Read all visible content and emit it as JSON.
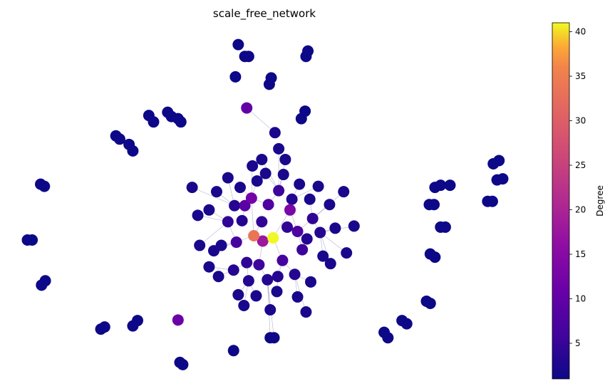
{
  "chart_data": {
    "type": "scatter",
    "title": "scale_free_network",
    "xlabel": "",
    "ylabel": "",
    "colorbar": {
      "label": "Degree",
      "colormap": "plasma",
      "range": [
        1,
        41
      ],
      "ticks": [
        5,
        10,
        15,
        20,
        25,
        30,
        35,
        40
      ],
      "tick_labels": [
        "5",
        "10",
        "15",
        "20",
        "25",
        "30",
        "35",
        "40"
      ]
    },
    "series": [
      {
        "values": [
          {
            "x": 0.0,
            "y": 0.0,
            "degree": 41
          },
          {
            "x": -0.41,
            "y": 0.04,
            "degree": 30
          },
          {
            "x": -0.22,
            "y": -0.06,
            "degree": 16
          },
          {
            "x": 0.36,
            "y": 0.52,
            "degree": 12
          },
          {
            "x": -0.46,
            "y": 0.74,
            "degree": 11
          },
          {
            "x": -2.02,
            "y": -1.53,
            "degree": 10
          },
          {
            "x": -0.56,
            "y": 2.42,
            "degree": 9
          },
          {
            "x": -0.6,
            "y": 0.6,
            "degree": 8
          },
          {
            "x": 0.52,
            "y": 0.12,
            "degree": 7
          },
          {
            "x": -0.1,
            "y": 0.62,
            "degree": 7
          },
          {
            "x": 0.2,
            "y": -0.42,
            "degree": 6
          },
          {
            "x": -0.78,
            "y": -0.08,
            "degree": 6
          },
          {
            "x": 0.62,
            "y": -0.22,
            "degree": 5
          },
          {
            "x": -0.3,
            "y": -0.5,
            "degree": 5
          },
          {
            "x": 0.12,
            "y": 0.88,
            "degree": 5
          },
          {
            "x": -0.96,
            "y": 0.3,
            "degree": 4
          },
          {
            "x": 0.84,
            "y": 0.36,
            "degree": 4
          },
          {
            "x": -0.56,
            "y": -0.46,
            "degree": 4
          },
          {
            "x": -0.24,
            "y": 0.3,
            "degree": 4
          },
          {
            "x": 0.3,
            "y": 0.2,
            "degree": 4
          },
          {
            "x": -0.66,
            "y": 0.32,
            "degree": 3
          },
          {
            "x": 0.4,
            "y": 0.72,
            "degree": 3
          },
          {
            "x": -0.82,
            "y": 0.6,
            "degree": 3
          },
          {
            "x": 0.72,
            "y": -0.02,
            "degree": 3
          },
          {
            "x": 1.0,
            "y": 0.1,
            "degree": 3
          },
          {
            "x": 0.1,
            "y": -0.72,
            "degree": 3
          },
          {
            "x": -0.12,
            "y": -0.78,
            "degree": 3
          },
          {
            "x": -0.52,
            "y": -0.8,
            "degree": 3
          },
          {
            "x": 0.46,
            "y": -0.68,
            "degree": 3
          },
          {
            "x": -0.84,
            "y": -0.6,
            "degree": 3
          },
          {
            "x": 1.06,
            "y": -0.34,
            "degree": 2
          },
          {
            "x": -1.1,
            "y": -0.14,
            "degree": 2
          },
          {
            "x": 0.78,
            "y": 0.72,
            "degree": 2
          },
          {
            "x": -0.7,
            "y": 0.94,
            "degree": 2
          },
          {
            "x": 0.22,
            "y": 1.18,
            "degree": 2
          },
          {
            "x": -0.16,
            "y": 1.2,
            "degree": 2
          },
          {
            "x": -0.34,
            "y": 1.06,
            "degree": 2
          },
          {
            "x": 0.56,
            "y": 1.0,
            "degree": 2
          },
          {
            "x": 1.2,
            "y": 0.62,
            "degree": 2
          },
          {
            "x": -1.2,
            "y": 0.86,
            "degree": 2
          },
          {
            "x": 1.32,
            "y": 0.18,
            "degree": 2
          },
          {
            "x": -1.36,
            "y": 0.52,
            "degree": 2
          },
          {
            "x": 1.22,
            "y": -0.48,
            "degree": 2
          },
          {
            "x": -1.16,
            "y": -0.72,
            "degree": 2
          },
          {
            "x": 0.52,
            "y": -1.1,
            "degree": 2
          },
          {
            "x": -0.36,
            "y": -1.08,
            "degree": 2
          },
          {
            "x": 0.08,
            "y": -1.0,
            "degree": 2
          },
          {
            "x": -0.74,
            "y": -1.06,
            "degree": 2
          },
          {
            "x": 0.8,
            "y": -0.82,
            "degree": 2
          },
          {
            "x": -1.26,
            "y": -0.24,
            "degree": 2
          },
          {
            "x": 0.96,
            "y": 0.96,
            "degree": 2
          },
          {
            "x": -0.96,
            "y": 1.12,
            "degree": 2
          },
          {
            "x": 0.26,
            "y": 1.46,
            "degree": 2
          },
          {
            "x": 0.12,
            "y": 1.66,
            "degree": 2
          },
          {
            "x": 0.04,
            "y": 1.96,
            "degree": 2
          },
          {
            "x": -0.24,
            "y": 1.46,
            "degree": 2
          },
          {
            "x": -0.44,
            "y": 1.34,
            "degree": 2
          },
          {
            "x": 1.5,
            "y": 0.86,
            "degree": 2
          },
          {
            "x": -1.72,
            "y": 0.94,
            "degree": 2
          },
          {
            "x": -1.6,
            "y": 0.42,
            "degree": 2
          },
          {
            "x": 1.72,
            "y": 0.22,
            "degree": 2
          },
          {
            "x": -1.56,
            "y": -0.14,
            "degree": 2
          },
          {
            "x": 1.56,
            "y": -0.28,
            "degree": 2
          },
          {
            "x": -1.36,
            "y": -0.54,
            "degree": 2
          },
          {
            "x": 0.7,
            "y": -1.38,
            "degree": 2
          },
          {
            "x": -0.06,
            "y": -1.34,
            "degree": 2
          },
          {
            "x": -0.62,
            "y": -1.26,
            "degree": 2
          },
          {
            "x": 0.6,
            "y": 2.22,
            "degree": 1
          },
          {
            "x": 0.68,
            "y": 2.36,
            "degree": 1
          },
          {
            "x": -0.08,
            "y": 2.86,
            "degree": 1
          },
          {
            "x": -0.04,
            "y": 2.98,
            "degree": 1
          },
          {
            "x": -0.6,
            "y": 3.38,
            "degree": 1
          },
          {
            "x": -0.52,
            "y": 3.38,
            "degree": 1
          },
          {
            "x": 0.7,
            "y": 3.38,
            "degree": 1
          },
          {
            "x": 0.74,
            "y": 3.48,
            "degree": 1
          },
          {
            "x": -0.8,
            "y": 3.0,
            "degree": 1
          },
          {
            "x": -0.74,
            "y": 3.6,
            "degree": 1
          },
          {
            "x": -2.64,
            "y": 2.28,
            "degree": 1
          },
          {
            "x": -2.54,
            "y": 2.16,
            "degree": 1
          },
          {
            "x": -3.06,
            "y": 1.74,
            "degree": 1
          },
          {
            "x": -2.98,
            "y": 1.62,
            "degree": 1
          },
          {
            "x": -3.34,
            "y": 1.9,
            "degree": 1
          },
          {
            "x": -3.26,
            "y": 1.84,
            "degree": 1
          },
          {
            "x": -2.02,
            "y": 2.22,
            "degree": 1
          },
          {
            "x": -1.96,
            "y": 2.16,
            "degree": 1
          },
          {
            "x": -2.24,
            "y": 2.34,
            "degree": 1
          },
          {
            "x": -2.16,
            "y": 2.26,
            "degree": 1
          },
          {
            "x": -4.94,
            "y": 1.0,
            "degree": 1
          },
          {
            "x": -4.86,
            "y": 0.96,
            "degree": 1
          },
          {
            "x": -5.22,
            "y": -0.04,
            "degree": 1
          },
          {
            "x": -5.12,
            "y": -0.04,
            "degree": 1
          },
          {
            "x": -4.92,
            "y": -0.88,
            "degree": 1
          },
          {
            "x": -4.84,
            "y": -0.8,
            "degree": 1
          },
          {
            "x": -3.66,
            "y": -1.7,
            "degree": 1
          },
          {
            "x": -3.58,
            "y": -1.66,
            "degree": 1
          },
          {
            "x": -2.98,
            "y": -1.64,
            "degree": 1
          },
          {
            "x": -2.88,
            "y": -1.54,
            "degree": 1
          },
          {
            "x": -1.98,
            "y": -2.32,
            "degree": 1
          },
          {
            "x": -1.92,
            "y": -2.36,
            "degree": 1
          },
          {
            "x": -0.06,
            "y": -1.86,
            "degree": 1
          },
          {
            "x": 0.02,
            "y": -1.86,
            "degree": 1
          },
          {
            "x": -0.84,
            "y": -2.1,
            "degree": 1
          },
          {
            "x": 2.36,
            "y": -1.76,
            "degree": 1
          },
          {
            "x": 2.44,
            "y": -1.86,
            "degree": 1
          },
          {
            "x": 2.74,
            "y": -1.54,
            "degree": 1
          },
          {
            "x": 2.84,
            "y": -1.6,
            "degree": 1
          },
          {
            "x": 3.26,
            "y": -1.18,
            "degree": 1
          },
          {
            "x": 3.34,
            "y": -1.22,
            "degree": 1
          },
          {
            "x": 3.34,
            "y": -0.3,
            "degree": 1
          },
          {
            "x": 3.44,
            "y": -0.36,
            "degree": 1
          },
          {
            "x": 3.56,
            "y": 0.2,
            "degree": 1
          },
          {
            "x": 3.66,
            "y": 0.2,
            "degree": 1
          },
          {
            "x": 3.32,
            "y": 0.62,
            "degree": 1
          },
          {
            "x": 3.42,
            "y": 0.62,
            "degree": 1
          },
          {
            "x": 3.44,
            "y": 0.94,
            "degree": 1
          },
          {
            "x": 3.56,
            "y": 0.98,
            "degree": 1
          },
          {
            "x": 3.76,
            "y": 0.98,
            "degree": 1
          },
          {
            "x": 4.56,
            "y": 0.68,
            "degree": 1
          },
          {
            "x": 4.66,
            "y": 0.68,
            "degree": 1
          },
          {
            "x": 4.76,
            "y": 1.08,
            "degree": 1
          },
          {
            "x": 4.88,
            "y": 1.1,
            "degree": 1
          },
          {
            "x": 4.68,
            "y": 1.38,
            "degree": 1
          },
          {
            "x": 4.8,
            "y": 1.44,
            "degree": 1
          }
        ]
      }
    ],
    "xlim": [
      -5.5,
      5.1
    ],
    "ylim": [
      -2.6,
      3.9
    ],
    "grid": false,
    "legend": "none"
  }
}
